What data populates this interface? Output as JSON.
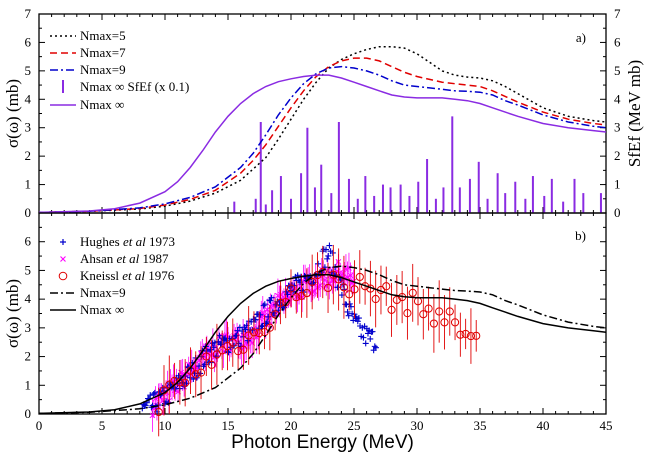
{
  "chart_data": [
    {
      "panel": "a)",
      "type": "line",
      "xlim": [
        0,
        45
      ],
      "ylim": [
        0,
        7
      ],
      "y2lim": [
        0,
        7
      ],
      "xticks": [
        "0",
        "5",
        "10",
        "15",
        "20",
        "25",
        "30",
        "35",
        "40",
        "45"
      ],
      "yticks": [
        "0",
        "1",
        "2",
        "3",
        "4",
        "5",
        "6",
        "7"
      ],
      "ylabel": "σ(ω)  (mb)",
      "y2label": "SfEf  (MeV mb)",
      "legend_position": "top-left",
      "series": [
        {
          "name": "Nmax=5",
          "color": "#000000",
          "dash": "dot",
          "x": [
            0,
            4,
            8,
            10,
            12,
            14,
            16,
            18,
            19,
            20,
            21,
            22,
            23,
            24,
            25,
            26,
            27,
            28,
            29,
            30,
            31,
            32,
            33,
            34,
            35,
            36,
            37,
            38,
            40,
            42,
            44,
            45
          ],
          "y": [
            0.02,
            0.06,
            0.14,
            0.24,
            0.42,
            0.7,
            1.15,
            1.95,
            2.6,
            3.3,
            4.0,
            4.6,
            5.1,
            5.4,
            5.6,
            5.75,
            5.85,
            5.85,
            5.8,
            5.6,
            5.3,
            5.0,
            4.85,
            4.78,
            4.75,
            4.65,
            4.45,
            4.2,
            3.7,
            3.4,
            3.25,
            3.2
          ]
        },
        {
          "name": "Nmax=7",
          "color": "#e00000",
          "dash": "dash",
          "x": [
            0,
            4,
            8,
            10,
            12,
            14,
            16,
            17,
            18,
            19,
            20,
            21,
            22,
            23,
            24,
            25,
            26,
            27,
            28,
            29,
            30,
            31,
            32,
            33,
            34,
            35,
            36,
            37,
            38,
            40,
            42,
            44,
            45
          ],
          "y": [
            0.02,
            0.06,
            0.16,
            0.28,
            0.48,
            0.8,
            1.4,
            1.85,
            2.4,
            3.05,
            3.7,
            4.3,
            4.8,
            5.15,
            5.35,
            5.45,
            5.45,
            5.35,
            5.15,
            4.95,
            4.8,
            4.7,
            4.6,
            4.55,
            4.5,
            4.45,
            4.3,
            4.1,
            3.9,
            3.55,
            3.3,
            3.15,
            3.1
          ]
        },
        {
          "name": "Nmax=9",
          "color": "#0000cc",
          "dash": "dashdot",
          "x": [
            0,
            4,
            8,
            10,
            12,
            14,
            16,
            17,
            18,
            19,
            20,
            21,
            22,
            23,
            24,
            25,
            26,
            27,
            28,
            29,
            30,
            31,
            32,
            33,
            34,
            35,
            36,
            37,
            38,
            40,
            42,
            44,
            45
          ],
          "y": [
            0.02,
            0.06,
            0.18,
            0.32,
            0.55,
            0.92,
            1.6,
            2.1,
            2.75,
            3.45,
            4.05,
            4.55,
            4.9,
            5.1,
            5.15,
            5.1,
            5.0,
            4.85,
            4.65,
            4.5,
            4.45,
            4.4,
            4.35,
            4.3,
            4.28,
            4.25,
            4.15,
            3.95,
            3.8,
            3.45,
            3.2,
            3.05,
            3.0
          ]
        },
        {
          "name": "Nmax ∞",
          "color": "#8a2be2",
          "dash": "solid",
          "x": [
            0,
            4,
            6,
            8,
            10,
            11,
            12,
            13,
            14,
            15,
            16,
            17,
            18,
            19,
            20,
            21,
            22,
            23,
            24,
            25,
            26,
            27,
            28,
            29,
            30,
            31,
            32,
            33,
            34,
            35,
            36,
            37,
            38,
            40,
            42,
            44,
            45
          ],
          "y": [
            0.02,
            0.07,
            0.15,
            0.35,
            0.75,
            1.1,
            1.6,
            2.2,
            2.85,
            3.4,
            3.85,
            4.2,
            4.45,
            4.62,
            4.72,
            4.8,
            4.85,
            4.85,
            4.75,
            4.6,
            4.45,
            4.3,
            4.15,
            4.08,
            4.05,
            4.05,
            4.05,
            4.0,
            3.95,
            3.85,
            3.7,
            3.55,
            3.4,
            3.15,
            3.0,
            2.9,
            2.85
          ]
        }
      ],
      "stems": {
        "name": "Nmax ∞ SfEf (x 0.1)",
        "color": "#8a2be2",
        "x": [
          15.5,
          17.2,
          17.6,
          18.0,
          18.5,
          19.2,
          20.0,
          20.8,
          21.3,
          21.9,
          22.4,
          23.2,
          23.8,
          24.6,
          25.3,
          25.9,
          26.6,
          27.3,
          27.9,
          28.7,
          29.4,
          30.1,
          30.8,
          31.5,
          32.1,
          32.8,
          33.4,
          34.2,
          34.9,
          35.6,
          36.4,
          37.0,
          37.8,
          38.6,
          39.2,
          40.1,
          40.7,
          41.6,
          42.5,
          43.2,
          44.6
        ],
        "y": [
          0.4,
          0.5,
          3.2,
          0.3,
          0.8,
          1.3,
          0.5,
          1.4,
          3.0,
          0.9,
          1.7,
          0.7,
          3.2,
          1.2,
          0.5,
          1.3,
          0.6,
          1.0,
          0.9,
          1.0,
          0.6,
          1.1,
          1.9,
          0.5,
          0.9,
          3.4,
          0.9,
          1.2,
          1.8,
          0.5,
          1.4,
          0.7,
          1.1,
          0.5,
          1.3,
          0.6,
          1.2,
          0.4,
          1.2,
          0.7,
          0.7
        ]
      }
    },
    {
      "panel": "b)",
      "type": "scatter",
      "xlim": [
        0,
        45
      ],
      "ylim": [
        0,
        7
      ],
      "xticks": [
        "0",
        "5",
        "10",
        "15",
        "20",
        "25",
        "30",
        "35",
        "40",
        "45"
      ],
      "yticks": [
        "0",
        "1",
        "2",
        "3",
        "4",
        "5",
        "6"
      ],
      "xlabel": "Photon Energy (MeV)",
      "ylabel": "σ(ω)  (mb)",
      "legend_position": "top-left",
      "datasets": [
        {
          "name": "Hughes et al 1973",
          "authors": "Hughes ",
          "etal": "et al",
          "year": " 1973",
          "marker": "plus",
          "color": "#0000cc"
        },
        {
          "name": "Ahsan et al 1987",
          "authors": "Ahsan ",
          "etal": "et al",
          "year": " 1987",
          "marker": "cross",
          "color": "#ff00ff"
        },
        {
          "name": "Kneissl et al 1976",
          "authors": "Kneissl ",
          "etal": "et al",
          "year": " 1976",
          "marker": "circle",
          "color": "#e00000"
        }
      ],
      "lines": [
        {
          "name": "Nmax=9",
          "color": "#000000",
          "dash": "dashdot",
          "x": [
            0,
            4,
            8,
            10,
            12,
            14,
            16,
            17,
            18,
            19,
            20,
            21,
            22,
            23,
            24,
            25,
            26,
            27,
            28,
            29,
            30,
            31,
            32,
            33,
            34,
            35,
            36,
            37,
            38,
            40,
            42,
            44,
            45
          ],
          "y": [
            0.02,
            0.06,
            0.18,
            0.32,
            0.55,
            0.92,
            1.6,
            2.1,
            2.75,
            3.45,
            4.05,
            4.55,
            4.9,
            5.1,
            5.15,
            5.1,
            5.0,
            4.85,
            4.65,
            4.5,
            4.45,
            4.4,
            4.35,
            4.3,
            4.28,
            4.25,
            4.15,
            3.95,
            3.8,
            3.45,
            3.2,
            3.05,
            3.0
          ]
        },
        {
          "name": "Nmax ∞",
          "color": "#000000",
          "dash": "solid",
          "x": [
            0,
            4,
            6,
            8,
            10,
            11,
            12,
            13,
            14,
            15,
            16,
            17,
            18,
            19,
            20,
            21,
            22,
            23,
            24,
            25,
            26,
            27,
            28,
            29,
            30,
            31,
            32,
            33,
            34,
            35,
            36,
            37,
            38,
            40,
            42,
            44,
            45
          ],
          "y": [
            0.02,
            0.07,
            0.15,
            0.35,
            0.75,
            1.1,
            1.6,
            2.2,
            2.85,
            3.4,
            3.85,
            4.2,
            4.45,
            4.62,
            4.72,
            4.8,
            4.85,
            4.85,
            4.75,
            4.6,
            4.45,
            4.3,
            4.15,
            4.08,
            4.05,
            4.05,
            4.05,
            4.0,
            3.95,
            3.85,
            3.7,
            3.55,
            3.4,
            3.15,
            3.0,
            2.9,
            2.85
          ]
        }
      ],
      "hughes_trend": {
        "x": [
          8.0,
          9,
          10,
          11,
          12,
          13,
          14,
          15,
          16,
          17,
          18,
          19,
          20,
          21,
          22,
          22.5,
          23,
          23.5,
          24,
          24.5,
          25,
          25.5,
          26,
          26.5,
          27
        ],
        "y": [
          0.1,
          0.3,
          0.6,
          1.0,
          1.4,
          1.9,
          2.3,
          2.5,
          2.7,
          3.0,
          3.5,
          3.9,
          4.3,
          4.6,
          5.0,
          5.4,
          5.6,
          5.0,
          4.4,
          3.7,
          3.2,
          2.9,
          2.7,
          2.6,
          2.5
        ]
      },
      "ahsan_trend": {
        "x": [
          9,
          10,
          11,
          12,
          13,
          14,
          15,
          16,
          17,
          18,
          19,
          20,
          21,
          22,
          23,
          24,
          25
        ],
        "y": [
          0.3,
          0.6,
          1.0,
          1.5,
          1.9,
          2.3,
          2.5,
          2.6,
          2.8,
          3.3,
          3.8,
          4.1,
          4.4,
          4.6,
          4.8,
          5.0,
          4.6
        ]
      },
      "kneissl_trend": {
        "x": [
          9,
          10,
          11,
          12,
          13,
          14,
          15,
          16,
          17,
          18,
          19,
          20,
          21,
          22,
          23,
          24,
          25,
          26,
          27,
          28,
          29,
          30,
          31,
          32,
          33,
          34,
          35
        ],
        "y": [
          0.3,
          0.6,
          1.0,
          1.3,
          1.7,
          2.0,
          2.3,
          2.5,
          2.7,
          3.2,
          3.7,
          4.1,
          4.4,
          4.6,
          4.7,
          4.6,
          4.5,
          4.4,
          4.2,
          4.0,
          3.9,
          3.8,
          3.6,
          3.4,
          3.1,
          2.8,
          2.3
        ]
      }
    }
  ]
}
